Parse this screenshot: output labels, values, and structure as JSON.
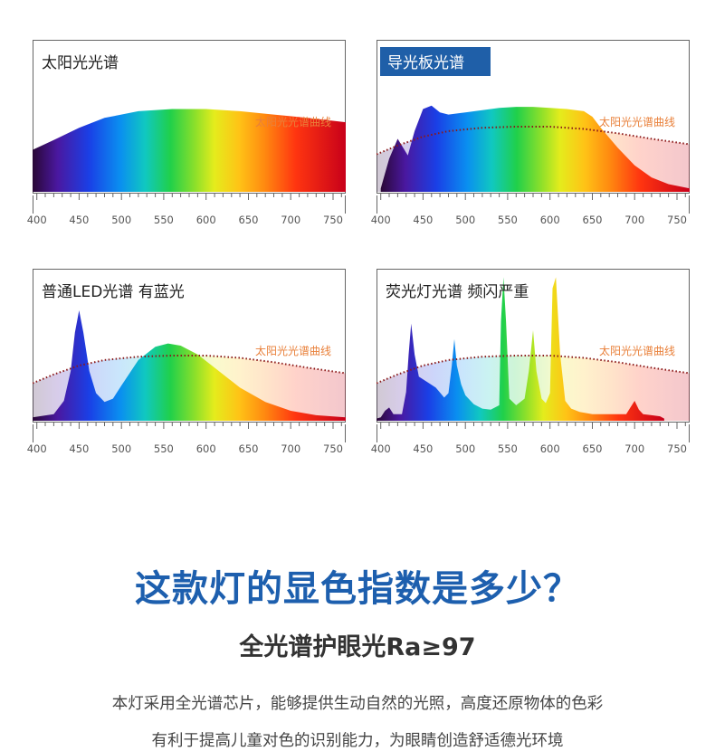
{
  "chart_data": [
    {
      "type": "area",
      "title": "太阳光光谱",
      "curve_label": "太阳光光谱曲线",
      "xlim": [
        395,
        765
      ],
      "xticks": [
        400,
        450,
        500,
        550,
        600,
        650,
        700,
        750
      ],
      "reference_curve": false,
      "series": [
        {
          "x": [
            395,
            420,
            450,
            480,
            520,
            560,
            600,
            640,
            680,
            720,
            765
          ],
          "y": [
            0.38,
            0.47,
            0.58,
            0.67,
            0.73,
            0.75,
            0.75,
            0.73,
            0.7,
            0.67,
            0.63
          ]
        }
      ]
    },
    {
      "type": "area",
      "title": "导光板光谱",
      "title_highlight": true,
      "curve_label": "太阳光光谱曲线",
      "xlim": [
        395,
        765
      ],
      "xticks": [
        400,
        450,
        500,
        550,
        600,
        650,
        700,
        750
      ],
      "reference_curve": true,
      "series": [
        {
          "x": [
            400,
            410,
            420,
            432,
            440,
            450,
            460,
            470,
            480,
            500,
            520,
            540,
            560,
            580,
            600,
            620,
            640,
            650,
            660,
            680,
            700,
            720,
            740,
            765
          ],
          "y": [
            0.03,
            0.3,
            0.48,
            0.33,
            0.55,
            0.75,
            0.78,
            0.72,
            0.7,
            0.72,
            0.74,
            0.76,
            0.77,
            0.77,
            0.76,
            0.75,
            0.73,
            0.68,
            0.58,
            0.4,
            0.24,
            0.13,
            0.07,
            0.03
          ]
        }
      ]
    },
    {
      "type": "area",
      "title": "普通LED光谱 有蓝光",
      "curve_label": "太阳光光谱曲线",
      "xlim": [
        395,
        765
      ],
      "xticks": [
        400,
        450,
        500,
        550,
        600,
        650,
        700,
        750
      ],
      "reference_curve": true,
      "series": [
        {
          "x": [
            395,
            420,
            432,
            440,
            445,
            450,
            455,
            462,
            470,
            480,
            490,
            500,
            520,
            540,
            555,
            570,
            590,
            610,
            640,
            670,
            700,
            730,
            765
          ],
          "y": [
            0.03,
            0.06,
            0.18,
            0.45,
            0.8,
            1.0,
            0.8,
            0.45,
            0.25,
            0.17,
            0.2,
            0.32,
            0.55,
            0.67,
            0.7,
            0.68,
            0.6,
            0.48,
            0.3,
            0.17,
            0.09,
            0.05,
            0.03
          ]
        }
      ]
    },
    {
      "type": "area",
      "title": "荧光灯光谱 频闪严重",
      "curve_label": "太阳光光谱曲线",
      "xlim": [
        395,
        765
      ],
      "xticks": [
        400,
        450,
        500,
        550,
        600,
        650,
        700,
        750
      ],
      "reference_curve": true,
      "series": [
        {
          "x": [
            395,
            400,
            405,
            410,
            415,
            425,
            430,
            433,
            436,
            440,
            445,
            455,
            465,
            475,
            480,
            484,
            487,
            490,
            495,
            500,
            510,
            520,
            530,
            540,
            542,
            545,
            548,
            552,
            560,
            570,
            575,
            580,
            584,
            590,
            595,
            600,
            603,
            607,
            612,
            618,
            625,
            635,
            650,
            670,
            690,
            695,
            700,
            705,
            710,
            720,
            730,
            735
          ],
          "y": [
            0.02,
            0.03,
            0.09,
            0.12,
            0.06,
            0.06,
            0.26,
            0.6,
            0.88,
            0.6,
            0.4,
            0.35,
            0.3,
            0.21,
            0.25,
            0.5,
            0.74,
            0.5,
            0.33,
            0.23,
            0.15,
            0.11,
            0.1,
            0.14,
            0.9,
            1.3,
            0.9,
            0.2,
            0.14,
            0.2,
            0.45,
            0.82,
            0.45,
            0.2,
            0.16,
            0.25,
            1.2,
            1.3,
            0.6,
            0.18,
            0.11,
            0.08,
            0.06,
            0.06,
            0.06,
            0.12,
            0.18,
            0.1,
            0.06,
            0.05,
            0.04,
            0.02
          ]
        }
      ]
    }
  ],
  "headline": "这款灯的显色指数是多少？",
  "subhead": "全光谱护眼光Ra≥97",
  "body_lines": [
    "本灯采用全光谱芯片，能够提供生动自然的光照，高度还原物体的色彩",
    "有利于提高儿童对色的识别能力，为眼睛创造舒适德光环境"
  ],
  "colors": {
    "headline": "#1d5fae",
    "title_highlight_bg": "#1f5fa8",
    "curve_label": "#e9803a",
    "reference_curve": "#8b1a1a"
  }
}
